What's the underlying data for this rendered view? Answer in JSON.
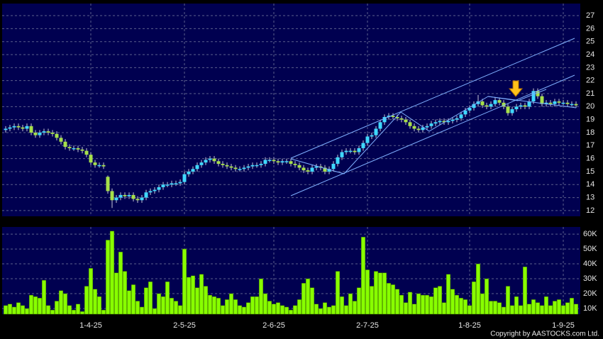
{
  "chart_data": {
    "type": "candlestick",
    "categories": [
      null,
      null,
      null,
      null,
      null,
      null,
      null,
      null,
      null,
      null,
      null,
      null,
      null,
      null,
      null,
      null,
      null,
      null,
      null,
      null,
      "1-4-25",
      null,
      null,
      null,
      null,
      null,
      null,
      null,
      null,
      null,
      null,
      null,
      null,
      null,
      null,
      null,
      null,
      null,
      null,
      null,
      null,
      null,
      "2-5-25",
      null,
      null,
      null,
      null,
      null,
      null,
      null,
      null,
      null,
      null,
      null,
      null,
      null,
      null,
      null,
      null,
      null,
      null,
      null,
      null,
      "2-6-25",
      null,
      null,
      null,
      null,
      null,
      null,
      null,
      null,
      null,
      null,
      null,
      null,
      null,
      null,
      null,
      null,
      null,
      null,
      null,
      null,
      null,
      "2-7-25",
      null,
      null,
      null,
      null,
      null,
      null,
      null,
      null,
      null,
      null,
      null,
      null,
      null,
      null,
      null,
      null,
      null,
      null,
      null,
      null,
      null,
      null,
      null,
      "1-8-25",
      null,
      null,
      null,
      null,
      null,
      null,
      null,
      null,
      null,
      null,
      null,
      null,
      null,
      null,
      null,
      null,
      null,
      null,
      null,
      null,
      null,
      "1-9-25",
      null,
      null,
      null
    ],
    "open": [
      18.2,
      18.3,
      18.4,
      18.5,
      18.4,
      18.3,
      18.5,
      18.0,
      17.8,
      18.0,
      18.1,
      18.0,
      17.9,
      17.6,
      17.3,
      16.9,
      16.8,
      16.8,
      16.7,
      16.6,
      16.3,
      15.7,
      15.5,
      15.5,
      14.6,
      13.5,
      12.8,
      13.0,
      13.2,
      13.1,
      13.2,
      12.9,
      12.8,
      13.0,
      13.4,
      13.5,
      13.6,
      13.8,
      14.0,
      14.0,
      14.1,
      14.1,
      14.2,
      14.8,
      15.0,
      15.2,
      15.5,
      15.7,
      15.9,
      16.0,
      15.8,
      15.6,
      15.5,
      15.4,
      15.3,
      15.2,
      15.2,
      15.3,
      15.4,
      15.5,
      15.5,
      15.6,
      15.9,
      15.9,
      15.8,
      15.7,
      15.8,
      15.8,
      15.6,
      15.5,
      15.3,
      15.1,
      15.0,
      15.3,
      15.4,
      15.3,
      15.0,
      15.2,
      15.6,
      16.1,
      16.5,
      16.6,
      16.6,
      16.5,
      16.8,
      17.2,
      17.7,
      17.8,
      18.3,
      18.8,
      19.2,
      19.3,
      19.2,
      19.1,
      19.0,
      18.8,
      18.5,
      18.3,
      18.2,
      18.4,
      18.5,
      18.7,
      18.8,
      18.9,
      18.8,
      18.9,
      19.0,
      19.1,
      19.4,
      19.7,
      19.9,
      20.2,
      20.4,
      20.1,
      20.0,
      20.2,
      20.5,
      20.3,
      20.0,
      19.5,
      19.8,
      20.0,
      20.1,
      20.0,
      20.4,
      21.2,
      20.8,
      20.2,
      20.3,
      20.2,
      20.4,
      20.3,
      20.3,
      20.2,
      20.2
    ],
    "high": [
      18.5,
      18.6,
      18.7,
      18.7,
      18.6,
      18.7,
      18.7,
      18.2,
      18.2,
      18.3,
      18.3,
      18.2,
      18.1,
      17.8,
      17.5,
      17.1,
      17.0,
      17.0,
      16.9,
      16.8,
      16.5,
      15.9,
      15.7,
      15.7,
      14.7,
      13.7,
      13.2,
      13.4,
      13.4,
      13.4,
      13.4,
      13.1,
      13.2,
      13.6,
      13.7,
      13.8,
      14.0,
      14.2,
      14.2,
      14.3,
      14.3,
      14.4,
      15.0,
      15.2,
      15.4,
      15.7,
      15.9,
      16.1,
      16.2,
      16.2,
      16.0,
      15.8,
      15.7,
      15.6,
      15.5,
      15.4,
      15.5,
      15.6,
      15.7,
      15.7,
      15.8,
      16.1,
      16.1,
      16.1,
      16.0,
      16.0,
      16.0,
      16.0,
      15.8,
      15.7,
      15.5,
      15.3,
      15.5,
      15.6,
      15.6,
      15.5,
      15.4,
      15.8,
      16.3,
      16.7,
      16.8,
      16.8,
      16.8,
      17.0,
      17.4,
      17.9,
      18.0,
      18.5,
      19.0,
      19.4,
      19.5,
      19.5,
      19.4,
      19.3,
      19.2,
      19.0,
      18.7,
      18.5,
      18.6,
      18.7,
      18.9,
      19.0,
      19.1,
      19.1,
      19.1,
      19.2,
      19.3,
      19.6,
      19.9,
      20.1,
      20.4,
      20.9,
      20.6,
      20.3,
      20.4,
      20.7,
      20.7,
      20.5,
      20.2,
      20.0,
      20.2,
      20.3,
      20.3,
      20.6,
      21.4,
      21.4,
      21.0,
      20.5,
      20.5,
      20.6,
      20.6,
      20.5,
      20.5,
      20.4,
      20.4
    ],
    "low": [
      18.0,
      18.1,
      18.2,
      18.2,
      18.1,
      18.1,
      17.8,
      17.6,
      17.6,
      17.8,
      17.8,
      17.7,
      17.4,
      17.1,
      16.7,
      16.6,
      16.6,
      16.5,
      16.4,
      16.1,
      15.5,
      15.3,
      15.3,
      15.2,
      13.3,
      12.2,
      12.6,
      12.8,
      12.9,
      12.9,
      12.7,
      12.6,
      12.6,
      12.8,
      13.2,
      13.3,
      13.4,
      13.6,
      13.8,
      13.8,
      13.9,
      13.9,
      14.0,
      14.6,
      14.8,
      15.0,
      15.3,
      15.5,
      15.7,
      15.6,
      15.4,
      15.3,
      15.2,
      15.1,
      15.0,
      15.0,
      15.0,
      15.1,
      15.2,
      15.3,
      15.3,
      15.4,
      15.7,
      15.6,
      15.5,
      15.5,
      15.6,
      15.4,
      15.3,
      15.1,
      14.9,
      14.8,
      14.8,
      15.1,
      15.1,
      14.8,
      14.8,
      15.0,
      15.4,
      15.9,
      16.3,
      16.4,
      16.3,
      16.3,
      16.6,
      17.0,
      17.5,
      17.6,
      18.1,
      18.6,
      19.0,
      19.0,
      18.9,
      18.8,
      18.6,
      18.3,
      18.1,
      18.0,
      18.0,
      18.2,
      18.3,
      18.5,
      18.6,
      18.6,
      18.6,
      18.7,
      18.8,
      18.9,
      19.2,
      19.5,
      19.7,
      20.0,
      19.9,
      19.8,
      19.8,
      20.0,
      20.1,
      19.8,
      19.3,
      19.3,
      19.6,
      19.8,
      19.8,
      19.8,
      20.2,
      20.6,
      20.0,
      20.0,
      20.0,
      20.0,
      20.1,
      20.1,
      20.0,
      20.0,
      19.9
    ],
    "close": [
      18.3,
      18.4,
      18.5,
      18.4,
      18.3,
      18.5,
      18.0,
      17.8,
      18.0,
      18.1,
      18.0,
      17.9,
      17.6,
      17.3,
      16.9,
      16.8,
      16.8,
      16.7,
      16.6,
      16.3,
      15.7,
      15.5,
      15.5,
      15.4,
      13.5,
      12.8,
      13.0,
      13.2,
      13.1,
      13.2,
      12.9,
      12.8,
      13.0,
      13.4,
      13.5,
      13.6,
      13.8,
      14.0,
      14.0,
      14.1,
      14.1,
      14.2,
      14.8,
      15.0,
      15.2,
      15.5,
      15.7,
      15.9,
      16.0,
      15.8,
      15.6,
      15.5,
      15.4,
      15.3,
      15.2,
      15.2,
      15.3,
      15.4,
      15.5,
      15.5,
      15.6,
      15.9,
      15.9,
      15.8,
      15.7,
      15.8,
      15.8,
      15.6,
      15.5,
      15.3,
      15.1,
      15.0,
      15.3,
      15.4,
      15.3,
      15.0,
      15.2,
      15.6,
      16.1,
      16.5,
      16.6,
      16.6,
      16.5,
      16.8,
      17.2,
      17.7,
      17.8,
      18.3,
      18.8,
      19.2,
      19.3,
      19.2,
      19.1,
      19.0,
      18.8,
      18.5,
      18.3,
      18.2,
      18.4,
      18.5,
      18.7,
      18.8,
      18.9,
      18.8,
      18.9,
      19.0,
      19.1,
      19.4,
      19.7,
      19.9,
      20.2,
      20.4,
      20.1,
      20.0,
      20.2,
      20.5,
      20.3,
      20.0,
      19.5,
      19.8,
      20.0,
      20.1,
      20.0,
      20.4,
      21.2,
      20.8,
      20.2,
      20.3,
      20.2,
      20.4,
      20.3,
      20.3,
      20.2,
      20.2,
      20.1
    ],
    "up_color": "#3fd8ff",
    "down_color": "#a6e04a",
    "ylim": [
      11.56,
      27.93
    ],
    "yticks": [
      12,
      13,
      14,
      15,
      16,
      17,
      18,
      19,
      20,
      21,
      22,
      23,
      24,
      25,
      26,
      27
    ],
    "volume": [
      12000,
      13000,
      11000,
      14000,
      12000,
      10000,
      19000,
      18000,
      17000,
      29000,
      12000,
      9000,
      15000,
      22000,
      20000,
      12000,
      9000,
      13000,
      8000,
      25000,
      37000,
      23000,
      18000,
      9000,
      56000,
      62000,
      34000,
      48000,
      35000,
      22000,
      26000,
      15000,
      11000,
      24000,
      28000,
      10000,
      20000,
      18000,
      28000,
      17000,
      15000,
      12000,
      50000,
      31000,
      32000,
      24000,
      33000,
      25000,
      19000,
      18000,
      17000,
      12000,
      16000,
      20000,
      16000,
      12000,
      11000,
      14000,
      18000,
      18000,
      30000,
      20000,
      15000,
      13000,
      14000,
      12000,
      11000,
      9000,
      12000,
      16000,
      27000,
      30000,
      24000,
      13000,
      10000,
      14000,
      11000,
      12000,
      35000,
      18000,
      12000,
      20000,
      15000,
      24000,
      58000,
      36000,
      25000,
      35000,
      34000,
      34000,
      27000,
      26000,
      23000,
      19000,
      14000,
      21000,
      13000,
      20000,
      19000,
      19000,
      18000,
      24000,
      25000,
      14000,
      33000,
      23000,
      19000,
      17000,
      16000,
      12000,
      28000,
      40000,
      20000,
      30000,
      15000,
      15000,
      14000,
      11000,
      25000,
      12000,
      18000,
      12000,
      38000,
      13000,
      16000,
      14000,
      12000,
      18000,
      12000,
      15000,
      16000,
      12000,
      14000,
      17000,
      13000
    ],
    "volume_color": "#88ff00",
    "y2lim": [
      6200,
      64800
    ],
    "y2ticks": [
      {
        "value": 10000,
        "label": "10K"
      },
      {
        "value": 20000,
        "label": "20K"
      },
      {
        "value": 30000,
        "label": "30K"
      },
      {
        "value": 40000,
        "label": "40K"
      },
      {
        "value": 50000,
        "label": "50K"
      },
      {
        "value": 60000,
        "label": "60K"
      }
    ],
    "grid": true,
    "copyright": "Copyright by AASTOCKS.com Ltd."
  }
}
